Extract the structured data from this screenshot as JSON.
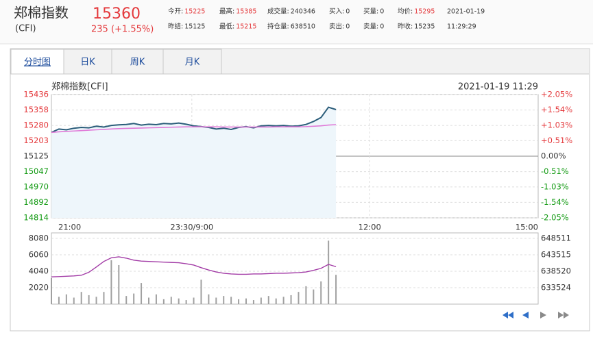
{
  "header": {
    "name": "郑棉指数",
    "code": "(CFI)",
    "price": 15360,
    "change": "235 (+1.55%)",
    "stats": [
      [
        {
          "label": "今开:",
          "value": 15225,
          "color": "#e4393c"
        },
        {
          "label": "最高:",
          "value": 15385,
          "color": "#e4393c"
        },
        {
          "label": "成交量:",
          "value": 240346
        },
        {
          "label": "买入:",
          "value": 0
        },
        {
          "label": "买量:",
          "value": 0
        },
        {
          "label": "均价:",
          "value": 15295,
          "color": "#e4393c"
        },
        {
          "value": "2021-01-19"
        }
      ],
      [
        {
          "label": "昨结:",
          "value": 15125
        },
        {
          "label": "最低:",
          "value": 15215,
          "color": "#e4393c"
        },
        {
          "label": "持仓量:",
          "value": 638510
        },
        {
          "label": "卖出:",
          "value": 0
        },
        {
          "label": "卖量:",
          "value": 0
        },
        {
          "label": "昨收:",
          "value": 15235
        },
        {
          "value": "11:29:29"
        }
      ]
    ]
  },
  "tabs": [
    "分时图",
    "日K",
    "周K",
    "月K"
  ],
  "active_tab": 0,
  "chart_data": [
    {
      "type": "line",
      "title": "郑棉指数[CFI]",
      "date": "2021-01-19 11:29",
      "x": [
        0,
        8,
        16,
        24,
        32,
        40,
        48,
        56,
        64,
        72,
        80,
        88,
        96,
        104,
        112,
        120,
        128,
        136,
        144,
        152,
        160,
        168,
        176,
        184,
        192,
        200,
        208,
        216,
        224,
        232,
        240,
        248,
        256,
        264,
        272,
        280,
        288,
        296,
        304
      ],
      "xlim": [
        0,
        520
      ],
      "xticks": [
        {
          "value": 0,
          "label": "21:00"
        },
        {
          "value": 150,
          "label": "23:30/9:00"
        },
        {
          "value": 340,
          "label": "12:00"
        },
        {
          "value": 520,
          "label": "15:00"
        }
      ],
      "series": [
        {
          "color": "#2b5d7a",
          "values": [
            15245,
            15262,
            15258,
            15266,
            15270,
            15268,
            15276,
            15272,
            15280,
            15283,
            15285,
            15290,
            15282,
            15286,
            15284,
            15290,
            15288,
            15292,
            15286,
            15278,
            15274,
            15270,
            15262,
            15266,
            15260,
            15270,
            15274,
            15268,
            15278,
            15280,
            15278,
            15280,
            15276,
            15278,
            15285,
            15300,
            15320,
            15372,
            15360
          ]
        },
        {
          "color": "#e07ad8",
          "values": [
            15245,
            15248,
            15250,
            15252,
            15254,
            15256,
            15258,
            15260,
            15262,
            15264,
            15265,
            15266,
            15267,
            15268,
            15269,
            15270,
            15271,
            15272,
            15273,
            15273,
            15273,
            15273,
            15273,
            15272,
            15272,
            15272,
            15272,
            15272,
            15272,
            15272,
            15273,
            15273,
            15273,
            15273,
            15274,
            15276,
            15278,
            15282,
            15284
          ]
        }
      ],
      "area_color": "#eef6fb",
      "ylim": [
        14814,
        15436
      ],
      "yticks": [
        15436,
        15358,
        15280,
        15203,
        15125,
        15047,
        14970,
        14892,
        14814
      ],
      "y2lim": [
        -2.05,
        2.05
      ],
      "y2ticks": [
        {
          "value": 2.05,
          "label": "+2.05%"
        },
        {
          "value": 1.54,
          "label": "+1.54%"
        },
        {
          "value": 1.03,
          "label": "+1.03%"
        },
        {
          "value": 0.51,
          "label": "+0.51%"
        },
        {
          "value": 0,
          "label": "0.00%"
        },
        {
          "value": -0.51,
          "label": "-0.51%"
        },
        {
          "value": -1.03,
          "label": "-1.03%"
        },
        {
          "value": -1.54,
          "label": "-1.54%"
        },
        {
          "value": -2.05,
          "label": "-2.05%"
        }
      ],
      "up_color": "#e4393c",
      "down_color": "#109910",
      "grid": true
    },
    {
      "type": "bar",
      "x": [
        0,
        8,
        16,
        24,
        32,
        40,
        48,
        56,
        64,
        72,
        80,
        88,
        96,
        104,
        112,
        120,
        128,
        136,
        144,
        152,
        160,
        168,
        176,
        184,
        192,
        200,
        208,
        216,
        224,
        232,
        240,
        248,
        256,
        264,
        272,
        280,
        288,
        296,
        304
      ],
      "xlim": [
        0,
        520
      ],
      "series": [
        {
          "color": "#a0a0a0",
          "values": [
            3200,
            900,
            1200,
            800,
            1500,
            1100,
            900,
            1500,
            5400,
            4800,
            1000,
            1300,
            2600,
            800,
            1200,
            600,
            900,
            700,
            500,
            800,
            3000,
            1200,
            800,
            1000,
            900,
            600,
            700,
            500,
            800,
            1000,
            700,
            900,
            1100,
            1500,
            2200,
            1800,
            2800,
            7800,
            3600
          ]
        },
        {
          "color": "#a23ba6",
          "axis": "y2",
          "values": [
            636800,
            636900,
            637000,
            637100,
            637300,
            638200,
            639800,
            641500,
            642600,
            642900,
            642500,
            641900,
            641600,
            641500,
            641400,
            641300,
            641200,
            641100,
            640800,
            640400,
            639600,
            638900,
            638300,
            637900,
            637700,
            637600,
            637600,
            637700,
            637700,
            637800,
            637900,
            637900,
            638000,
            638100,
            638300,
            638800,
            639400,
            640600,
            639900
          ]
        }
      ],
      "ylim": [
        0,
        8080
      ],
      "yticks": [
        8080,
        6060,
        4040,
        2020
      ],
      "y2lim": [
        628528,
        648511
      ],
      "y2ticks": [
        648511,
        643515,
        638520,
        633524
      ],
      "grid": true
    }
  ]
}
